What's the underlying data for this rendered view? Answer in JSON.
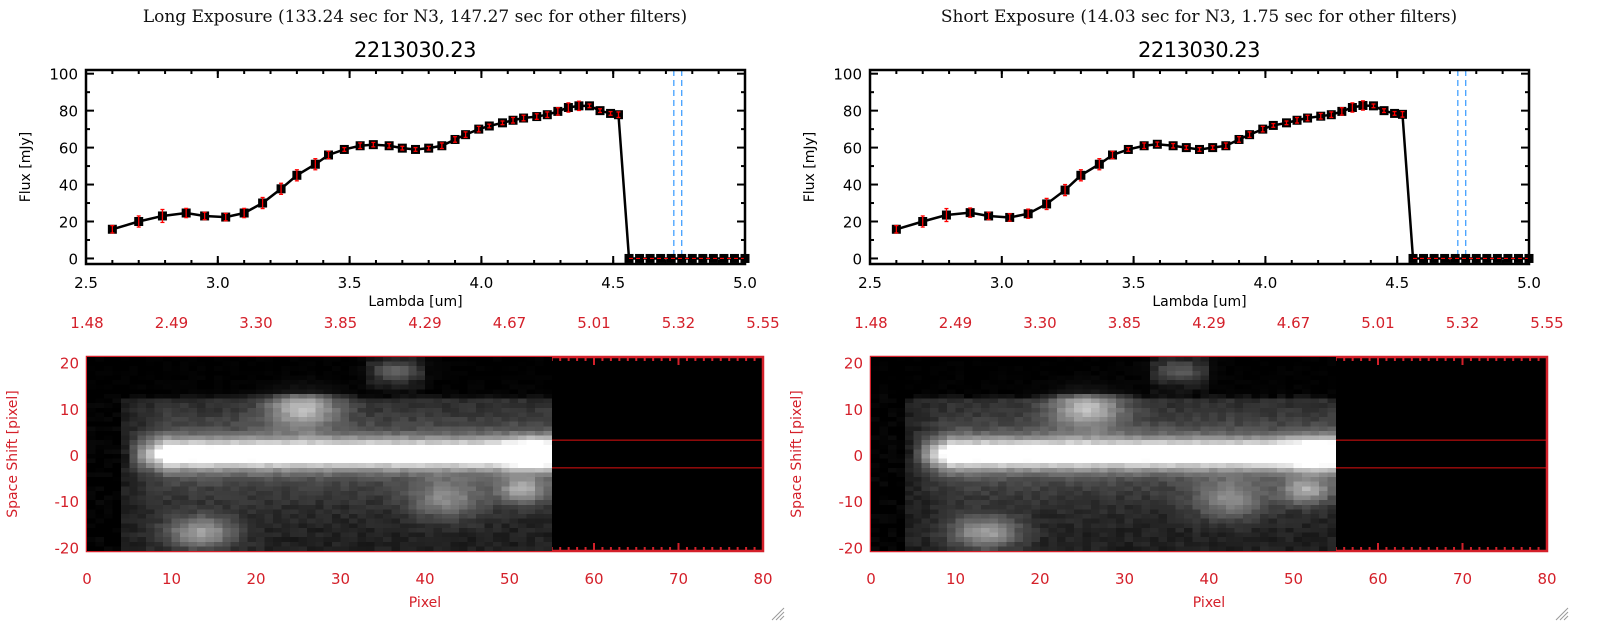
{
  "panels": [
    {
      "title": "Long Exposure (133.24 sec for N3, 147.27 sec for other filters)",
      "object_id": "2213030.23"
    },
    {
      "title": "Short Exposure (14.03 sec for N3, 1.75 sec for other filters)",
      "object_id": "2213030.23"
    }
  ],
  "colors": {
    "axis_red": "#d4202a",
    "marker": "#000000",
    "errorbar": "#ff0000",
    "marker_line_blue": "#3399ff",
    "star": "#2288ff"
  },
  "icons": {
    "resize": "resize-grip-icon",
    "star": "star-icon"
  },
  "chart_data": [
    {
      "type": "line",
      "title": "2213030.23",
      "xlabel": "Lambda [um]",
      "ylabel": "Flux [mJy]",
      "xlim": [
        2.5,
        5.0
      ],
      "ylim": [
        -3,
        102
      ],
      "xticks": [
        "2.5",
        "3.0",
        "3.5",
        "4.0",
        "4.5",
        "5.0"
      ],
      "yticks": [
        "0",
        "20",
        "40",
        "60",
        "80",
        "100"
      ],
      "x": [
        2.6,
        2.7,
        2.79,
        2.88,
        2.95,
        3.03,
        3.1,
        3.17,
        3.24,
        3.3,
        3.37,
        3.42,
        3.48,
        3.54,
        3.59,
        3.65,
        3.7,
        3.75,
        3.8,
        3.85,
        3.9,
        3.94,
        3.99,
        4.03,
        4.08,
        4.12,
        4.16,
        4.21,
        4.25,
        4.29,
        4.33,
        4.37,
        4.41,
        4.45,
        4.49,
        4.52,
        4.56,
        4.6,
        4.64,
        4.68,
        4.72,
        4.76,
        4.8,
        4.84,
        4.88,
        4.92,
        4.96,
        5.0
      ],
      "y": [
        15.8,
        20,
        23,
        24.6,
        23,
        22.4,
        24.6,
        30,
        37.7,
        45,
        51,
        56,
        59,
        61,
        61.6,
        61,
        59.7,
        59,
        59.7,
        61,
        64.4,
        67,
        70,
        71.7,
        73.4,
        74.8,
        76,
        76.8,
        77.8,
        79.6,
        81.7,
        82.6,
        82.6,
        80,
        78.5,
        77.8,
        0,
        0,
        0,
        0,
        0,
        0,
        0,
        0,
        0,
        0,
        0,
        0
      ],
      "yerr": [
        2,
        3,
        3.5,
        2.5,
        2,
        2,
        2.5,
        3,
        3,
        3,
        3,
        2,
        1,
        1.5,
        1.2,
        1.2,
        1,
        1,
        1,
        1.5,
        1.5,
        1.5,
        1.5,
        1,
        1,
        1.5,
        1.5,
        1.5,
        1.5,
        2,
        2.5,
        2.5,
        1,
        1,
        1,
        1.5,
        0,
        0,
        0,
        0,
        0,
        0,
        0,
        0,
        0,
        0,
        0,
        0
      ],
      "vlines": [
        4.73,
        4.76
      ],
      "hline": 0
    },
    {
      "type": "line",
      "title": "2213030.23",
      "xlabel": "Lambda [um]",
      "ylabel": "Flux [mJy]",
      "xlim": [
        2.5,
        5.0
      ],
      "ylim": [
        -3,
        102
      ],
      "xticks": [
        "2.5",
        "3.0",
        "3.5",
        "4.0",
        "4.5",
        "5.0"
      ],
      "yticks": [
        "0",
        "20",
        "40",
        "60",
        "80",
        "100"
      ],
      "x": [
        2.6,
        2.7,
        2.79,
        2.88,
        2.95,
        3.03,
        3.1,
        3.17,
        3.24,
        3.3,
        3.37,
        3.42,
        3.48,
        3.54,
        3.59,
        3.65,
        3.7,
        3.75,
        3.8,
        3.85,
        3.9,
        3.94,
        3.99,
        4.03,
        4.08,
        4.12,
        4.16,
        4.21,
        4.25,
        4.29,
        4.33,
        4.37,
        4.41,
        4.45,
        4.49,
        4.52,
        4.56,
        4.6,
        4.64,
        4.68,
        4.72,
        4.76,
        4.8,
        4.84,
        4.88,
        4.92,
        4.96,
        5.0
      ],
      "y": [
        15.8,
        20,
        23.5,
        24.8,
        23,
        22.2,
        24.2,
        29.5,
        37,
        45,
        51,
        56,
        59,
        61,
        61.8,
        61,
        60,
        59,
        60,
        61,
        64.4,
        67,
        70,
        72,
        73.4,
        74.8,
        76,
        77,
        77.8,
        79.6,
        81.7,
        82.8,
        82.6,
        80,
        78.5,
        78,
        0,
        0,
        0,
        0,
        0,
        0,
        0,
        0,
        0,
        0,
        0,
        0
      ],
      "yerr": [
        2,
        3,
        3.5,
        2.5,
        2,
        2,
        2.5,
        3,
        3,
        3,
        3,
        2,
        1,
        1.5,
        1.2,
        1.2,
        1,
        1,
        1,
        1.5,
        1.5,
        1.5,
        1.5,
        1,
        1,
        1.5,
        1.5,
        1.5,
        1.5,
        2,
        2.5,
        2.5,
        1,
        1,
        1,
        1.5,
        0,
        0,
        0,
        0,
        0,
        0,
        0,
        0,
        0,
        0,
        0,
        0
      ],
      "vlines": [
        4.73,
        4.76
      ],
      "hline": 0
    },
    {
      "type": "heatmap",
      "xlabel": "Pixel",
      "ylabel": "Space Shift [pixel]",
      "xlim": [
        0,
        80
      ],
      "ylim": [
        -21,
        21
      ],
      "xticks": [
        "0",
        "10",
        "20",
        "30",
        "40",
        "50",
        "60",
        "70",
        "80"
      ],
      "yticks": [
        "-20",
        "-10",
        "0",
        "10",
        "20"
      ],
      "top_xticks": [
        "1.48",
        "2.49",
        "3.30",
        "3.85",
        "4.29",
        "4.67",
        "5.01",
        "5.32",
        "5.55"
      ],
      "aperture_lines": [
        3,
        -3
      ],
      "stars": [
        [
          52.5,
          1
        ],
        [
          52.3,
          -8
        ]
      ],
      "data_extent_pixel": 55
    },
    {
      "type": "heatmap",
      "xlabel": "Pixel",
      "ylabel": "Space Shift [pixel]",
      "xlim": [
        0,
        80
      ],
      "ylim": [
        -21,
        21
      ],
      "xticks": [
        "0",
        "10",
        "20",
        "30",
        "40",
        "50",
        "60",
        "70",
        "80"
      ],
      "yticks": [
        "-20",
        "-10",
        "0",
        "10",
        "20"
      ],
      "top_xticks": [
        "1.48",
        "2.49",
        "3.30",
        "3.85",
        "4.29",
        "4.67",
        "5.01",
        "5.32",
        "5.55"
      ],
      "aperture_lines": [
        3,
        -3
      ],
      "stars": [
        [
          52.5,
          1
        ],
        [
          52.3,
          -8
        ]
      ],
      "data_extent_pixel": 55
    }
  ]
}
